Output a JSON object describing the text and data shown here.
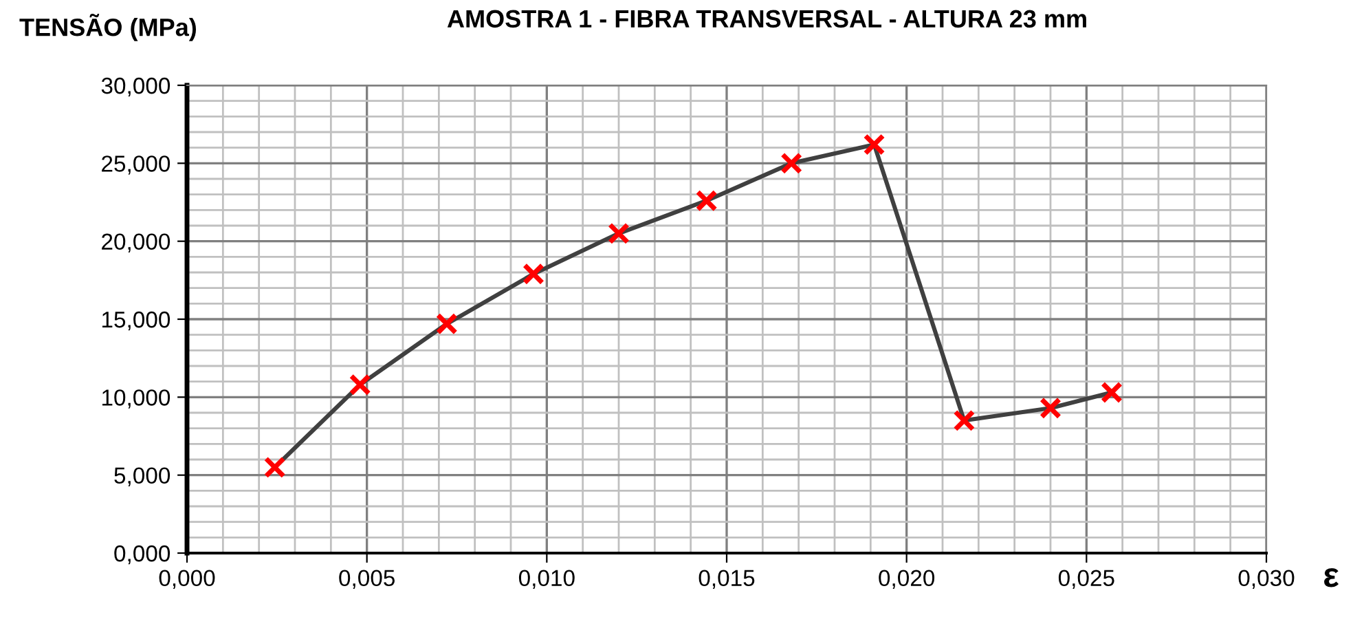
{
  "chart_data": {
    "type": "line",
    "title": "AMOSTRA 1 - FIBRA TRANSVERSAL - ALTURA 23 mm",
    "ylabel": "TENSÃO (MPa)",
    "xlabel": "ε",
    "x": [
      0.00244,
      0.00481,
      0.00722,
      0.00963,
      0.012,
      0.01444,
      0.0168,
      0.0191,
      0.0216,
      0.024,
      0.0257
    ],
    "series": [
      {
        "color": "#404040",
        "marker": "none",
        "values": [
          5.5,
          10.8,
          14.7,
          17.9,
          20.5,
          22.6,
          25.0,
          26.2,
          8.5,
          9.3,
          10.3
        ]
      },
      {
        "type": "scatter",
        "color": "#ff0000",
        "marker": "cross",
        "values": [
          5.5,
          10.8,
          14.7,
          17.9,
          20.5,
          22.6,
          25.0,
          26.2,
          8.5,
          9.3,
          10.3
        ]
      }
    ],
    "line_style": "solid",
    "grid": true,
    "legend": false,
    "xlim": [
      0,
      0.03
    ],
    "xticks": [
      {
        "value": 0,
        "label": "0,000"
      },
      {
        "value": 0.005,
        "label": "0,005"
      },
      {
        "value": 0.01,
        "label": "0,010"
      },
      {
        "value": 0.015,
        "label": "0,015"
      },
      {
        "value": 0.02,
        "label": "0,020"
      },
      {
        "value": 0.025,
        "label": "0,025"
      },
      {
        "value": 0.03,
        "label": "0,030"
      }
    ],
    "ylim": [
      0,
      30
    ],
    "yticks": [
      {
        "value": 0,
        "label": "0,000"
      },
      {
        "value": 5,
        "label": "5,000"
      },
      {
        "value": 10,
        "label": "10,000"
      },
      {
        "value": 15,
        "label": "15,000"
      },
      {
        "value": 20,
        "label": "20,000"
      },
      {
        "value": 25,
        "label": "25,000"
      },
      {
        "value": 30,
        "label": "30,000"
      }
    ]
  }
}
